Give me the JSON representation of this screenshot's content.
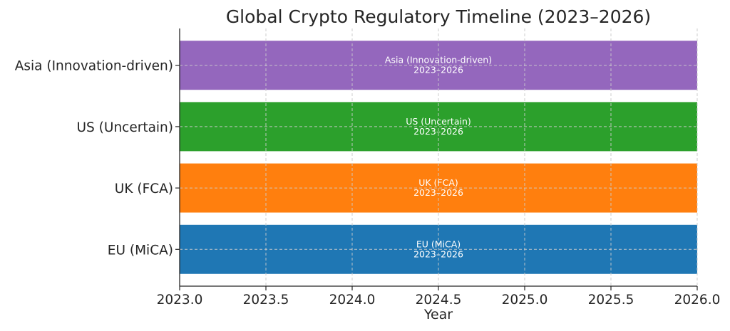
{
  "chart_data": {
    "type": "bar",
    "orientation": "horizontal",
    "title": "Global Crypto Regulatory Timeline (2023–2026)",
    "xlabel": "Year",
    "ylabel": "",
    "xlim": [
      2023.0,
      2026.0
    ],
    "x_ticks": [
      "2023.0",
      "2023.5",
      "2024.0",
      "2024.5",
      "2025.0",
      "2025.5",
      "2026.0"
    ],
    "grid": true,
    "series": [
      {
        "name": "EU (MiCA)",
        "start": 2023,
        "end": 2026,
        "label": "EU (MiCA)",
        "range_label": "2023–2026",
        "color": "#1f77b4"
      },
      {
        "name": "UK (FCA)",
        "start": 2023,
        "end": 2026,
        "label": "UK (FCA)",
        "range_label": "2023–2026",
        "color": "#ff7f0e"
      },
      {
        "name": "US (Uncertain)",
        "start": 2023,
        "end": 2026,
        "label": "US (Uncertain)",
        "range_label": "2023–2026",
        "color": "#2ca02c"
      },
      {
        "name": "Asia (Innovation-driven)",
        "start": 2023,
        "end": 2026,
        "label": "Asia (Innovation-driven)",
        "range_label": "2023–2026",
        "color": "#9467bd"
      }
    ]
  }
}
